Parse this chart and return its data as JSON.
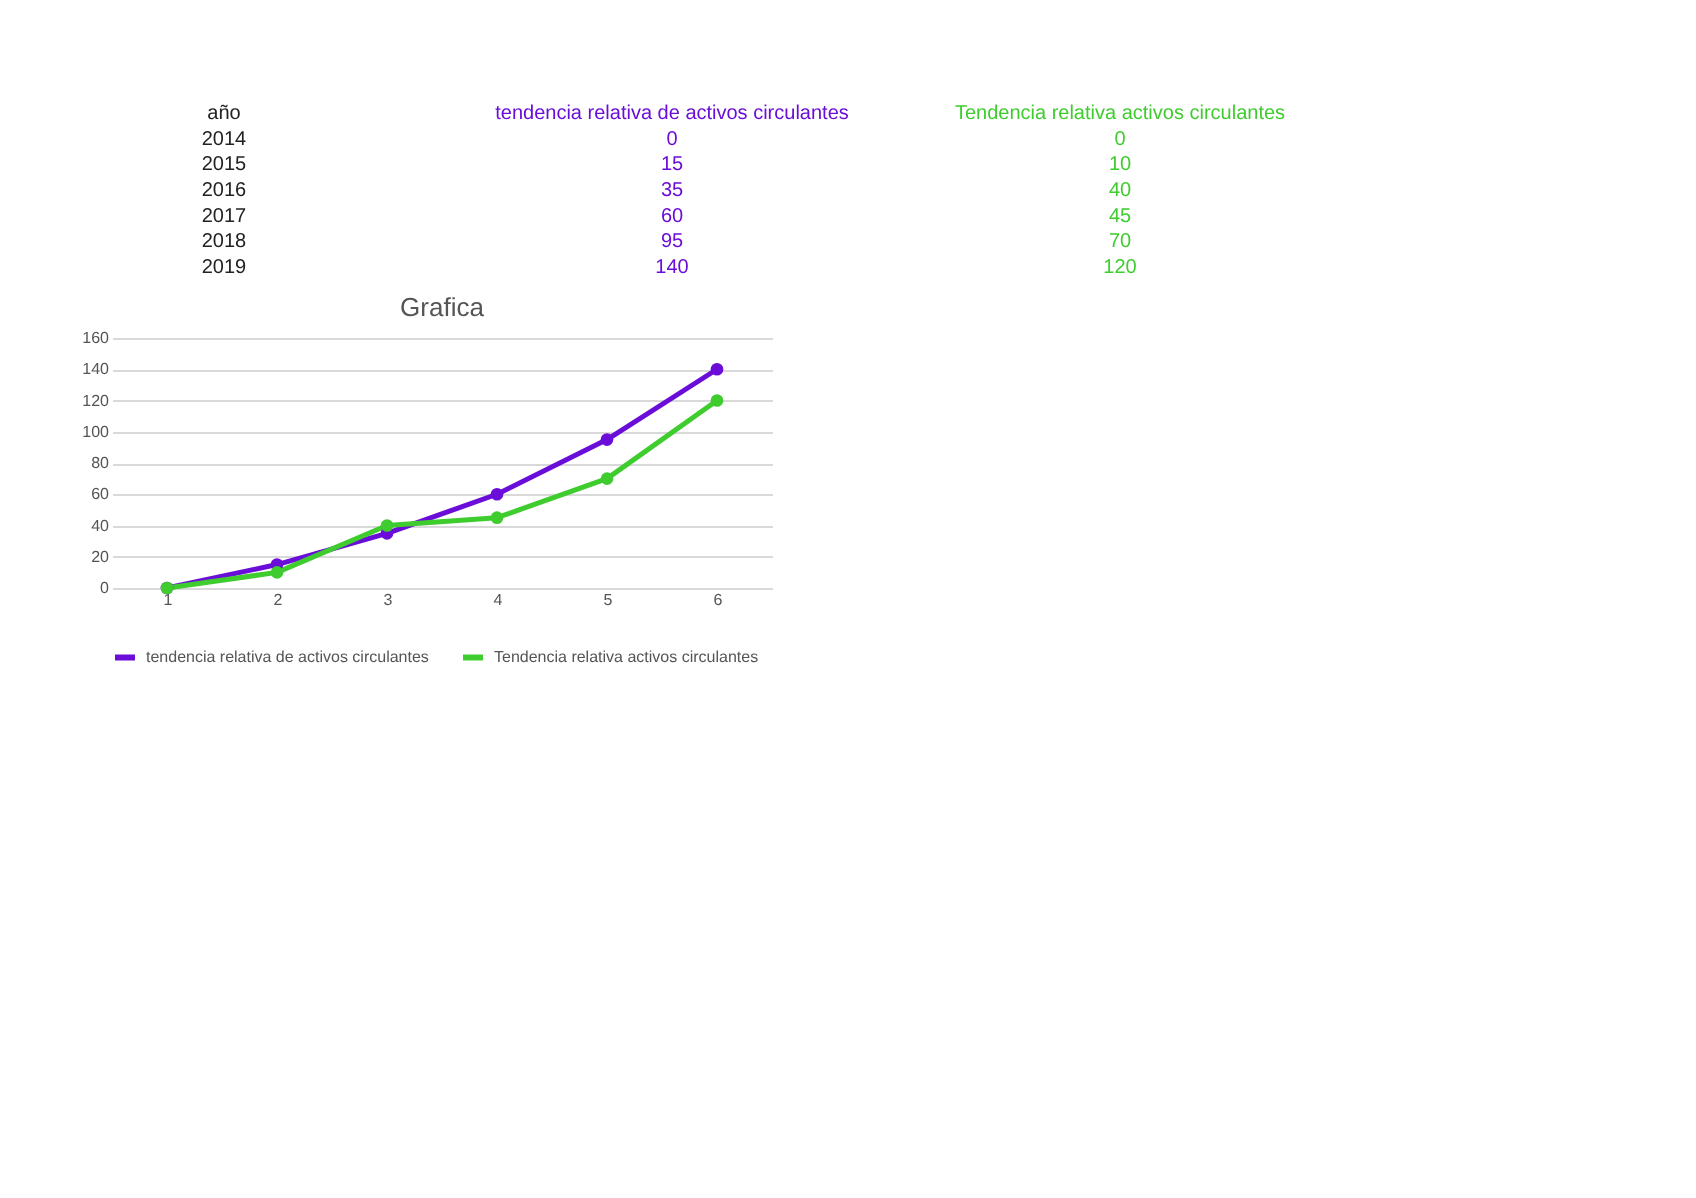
{
  "chart_data": {
    "type": "line",
    "title": "Grafica",
    "categories": [
      "1",
      "2",
      "3",
      "4",
      "5",
      "6"
    ],
    "series": [
      {
        "name": "tendencia relativa de activos circulantes",
        "color": "#6a0dd8",
        "values": [
          0,
          15,
          35,
          60,
          95,
          140
        ]
      },
      {
        "name": "Tendencia relativa activos circulantes",
        "color": "#3fcc2e",
        "values": [
          0,
          10,
          40,
          45,
          70,
          120
        ]
      }
    ],
    "ylim": [
      0,
      160
    ],
    "yticks": [
      0,
      20,
      40,
      60,
      80,
      100,
      120,
      140,
      160
    ],
    "grid": "y",
    "legend": "bottom",
    "marker": "circle",
    "line_style": "solid",
    "annotations": [
      "año",
      "2014",
      "0",
      "0",
      "2015",
      "15",
      "10",
      "2016",
      "35",
      "40",
      "2017",
      "60",
      "45",
      "2018",
      "95",
      "70",
      "2019",
      "140",
      "120"
    ]
  }
}
